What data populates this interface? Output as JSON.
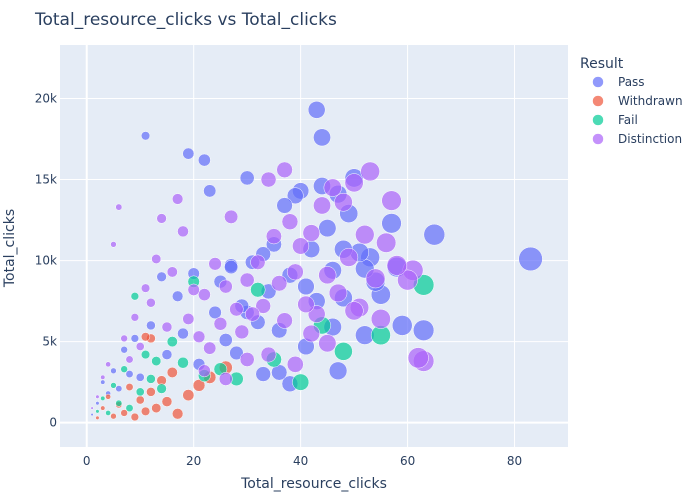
{
  "chart_data": {
    "type": "scatter",
    "title": "Total_resource_clicks vs Total_clicks",
    "xlabel": "Total_resource_clicks",
    "ylabel": "Total_clicks",
    "xlim": [
      -5,
      90
    ],
    "ylim": [
      -1500,
      23300
    ],
    "x_ticks": [
      0,
      20,
      40,
      60,
      80
    ],
    "y_ticks": [
      0,
      5000,
      10000,
      15000,
      20000
    ],
    "y_tick_labels": [
      "0",
      "5k",
      "10k",
      "15k",
      "20k"
    ],
    "grid": true,
    "marker_size": "bubble size proportional to Total_resource_clicks",
    "legend": {
      "title": "Result",
      "placement": "right"
    },
    "series": [
      {
        "name": "Pass",
        "color": "#636efa",
        "points": [
          [
            1,
            500
          ],
          [
            2,
            1200
          ],
          [
            3,
            2500
          ],
          [
            4,
            1800
          ],
          [
            5,
            3200
          ],
          [
            6,
            2100
          ],
          [
            7,
            4500
          ],
          [
            8,
            3000
          ],
          [
            9,
            5200
          ],
          [
            10,
            2800
          ],
          [
            11,
            17700
          ],
          [
            12,
            6000
          ],
          [
            14,
            9000
          ],
          [
            15,
            4200
          ],
          [
            17,
            7800
          ],
          [
            18,
            5500
          ],
          [
            19,
            16600
          ],
          [
            20,
            9200
          ],
          [
            21,
            3600
          ],
          [
            22,
            16200
          ],
          [
            23,
            14300
          ],
          [
            24,
            6800
          ],
          [
            25,
            8700
          ],
          [
            26,
            5100
          ],
          [
            27,
            9700
          ],
          [
            28,
            4300
          ],
          [
            29,
            7200
          ],
          [
            30,
            15100
          ],
          [
            31,
            9900
          ],
          [
            32,
            6200
          ],
          [
            33,
            10400
          ],
          [
            34,
            8100
          ],
          [
            35,
            11000
          ],
          [
            36,
            5700
          ],
          [
            37,
            13400
          ],
          [
            38,
            9100
          ],
          [
            39,
            14000
          ],
          [
            40,
            14300
          ],
          [
            41,
            8400
          ],
          [
            42,
            10700
          ],
          [
            43,
            19300
          ],
          [
            44,
            17600
          ],
          [
            44,
            14600
          ],
          [
            45,
            12000
          ],
          [
            46,
            9400
          ],
          [
            47,
            14100
          ],
          [
            48,
            7700
          ],
          [
            49,
            12900
          ],
          [
            50,
            15100
          ],
          [
            51,
            10500
          ],
          [
            52,
            9500
          ],
          [
            53,
            10200
          ],
          [
            54,
            8700
          ],
          [
            55,
            7900
          ],
          [
            57,
            12300
          ],
          [
            58,
            9600
          ],
          [
            59,
            6000
          ],
          [
            63,
            5700
          ],
          [
            65,
            11600
          ],
          [
            83,
            10100
          ],
          [
            36,
            3100
          ],
          [
            41,
            4700
          ],
          [
            46,
            5900
          ],
          [
            47,
            3200
          ],
          [
            38,
            2400
          ],
          [
            33,
            3000
          ],
          [
            30,
            6800
          ],
          [
            43,
            7500
          ],
          [
            52,
            5400
          ],
          [
            27,
            9600
          ],
          [
            48,
            10700
          ]
        ]
      },
      {
        "name": "Withdrawn",
        "color": "#ef553b",
        "points": [
          [
            2,
            300
          ],
          [
            3,
            900
          ],
          [
            4,
            1600
          ],
          [
            5,
            400
          ],
          [
            6,
            1100
          ],
          [
            7,
            600
          ],
          [
            8,
            2200
          ],
          [
            9,
            350
          ],
          [
            10,
            1400
          ],
          [
            11,
            700
          ],
          [
            12,
            1900
          ],
          [
            13,
            900
          ],
          [
            14,
            2600
          ],
          [
            15,
            1300
          ],
          [
            16,
            3100
          ],
          [
            17,
            550
          ],
          [
            19,
            1700
          ],
          [
            21,
            2300
          ],
          [
            23,
            2800
          ],
          [
            26,
            3400
          ],
          [
            11,
            5300
          ],
          [
            12,
            5200
          ]
        ]
      },
      {
        "name": "Fail",
        "color": "#00cc96",
        "points": [
          [
            2,
            700
          ],
          [
            3,
            1500
          ],
          [
            4,
            600
          ],
          [
            5,
            2300
          ],
          [
            6,
            1200
          ],
          [
            7,
            3300
          ],
          [
            8,
            900
          ],
          [
            9,
            7800
          ],
          [
            10,
            1900
          ],
          [
            11,
            4200
          ],
          [
            12,
            2700
          ],
          [
            13,
            3800
          ],
          [
            14,
            2100
          ],
          [
            16,
            5000
          ],
          [
            18,
            3700
          ],
          [
            20,
            8700
          ],
          [
            22,
            2900
          ],
          [
            25,
            3300
          ],
          [
            28,
            2700
          ],
          [
            32,
            8200
          ],
          [
            35,
            3900
          ],
          [
            40,
            2500
          ],
          [
            44,
            6000
          ],
          [
            48,
            4400
          ],
          [
            55,
            5400
          ],
          [
            63,
            8500
          ]
        ]
      },
      {
        "name": "Distinction",
        "color": "#ab63fa",
        "points": [
          [
            1,
            900
          ],
          [
            2,
            1600
          ],
          [
            3,
            2800
          ],
          [
            4,
            3600
          ],
          [
            5,
            11000
          ],
          [
            6,
            13300
          ],
          [
            7,
            5200
          ],
          [
            8,
            3900
          ],
          [
            9,
            6500
          ],
          [
            10,
            4700
          ],
          [
            11,
            8300
          ],
          [
            12,
            7400
          ],
          [
            13,
            10100
          ],
          [
            14,
            12600
          ],
          [
            15,
            5900
          ],
          [
            16,
            9300
          ],
          [
            17,
            13800
          ],
          [
            18,
            11800
          ],
          [
            19,
            6400
          ],
          [
            20,
            8200
          ],
          [
            21,
            5300
          ],
          [
            22,
            7900
          ],
          [
            23,
            4600
          ],
          [
            24,
            9800
          ],
          [
            25,
            6100
          ],
          [
            26,
            8400
          ],
          [
            27,
            12700
          ],
          [
            28,
            7000
          ],
          [
            29,
            5600
          ],
          [
            30,
            8800
          ],
          [
            31,
            6700
          ],
          [
            32,
            9900
          ],
          [
            33,
            7200
          ],
          [
            34,
            15000
          ],
          [
            35,
            11500
          ],
          [
            36,
            8600
          ],
          [
            37,
            15600
          ],
          [
            38,
            12400
          ],
          [
            39,
            9300
          ],
          [
            40,
            10900
          ],
          [
            41,
            7300
          ],
          [
            42,
            11700
          ],
          [
            43,
            6700
          ],
          [
            44,
            13400
          ],
          [
            45,
            9100
          ],
          [
            46,
            14500
          ],
          [
            47,
            8000
          ],
          [
            48,
            13600
          ],
          [
            49,
            10200
          ],
          [
            50,
            14800
          ],
          [
            51,
            7100
          ],
          [
            52,
            11600
          ],
          [
            53,
            15500
          ],
          [
            54,
            8900
          ],
          [
            55,
            6400
          ],
          [
            56,
            11100
          ],
          [
            57,
            13700
          ],
          [
            58,
            9700
          ],
          [
            60,
            8800
          ],
          [
            61,
            9400
          ],
          [
            62,
            4000
          ],
          [
            63,
            3800
          ],
          [
            34,
            4200
          ],
          [
            39,
            3600
          ],
          [
            45,
            4900
          ],
          [
            30,
            3900
          ],
          [
            26,
            2700
          ],
          [
            50,
            6900
          ],
          [
            42,
            5500
          ],
          [
            37,
            6300
          ],
          [
            22,
            3200
          ]
        ]
      }
    ]
  }
}
